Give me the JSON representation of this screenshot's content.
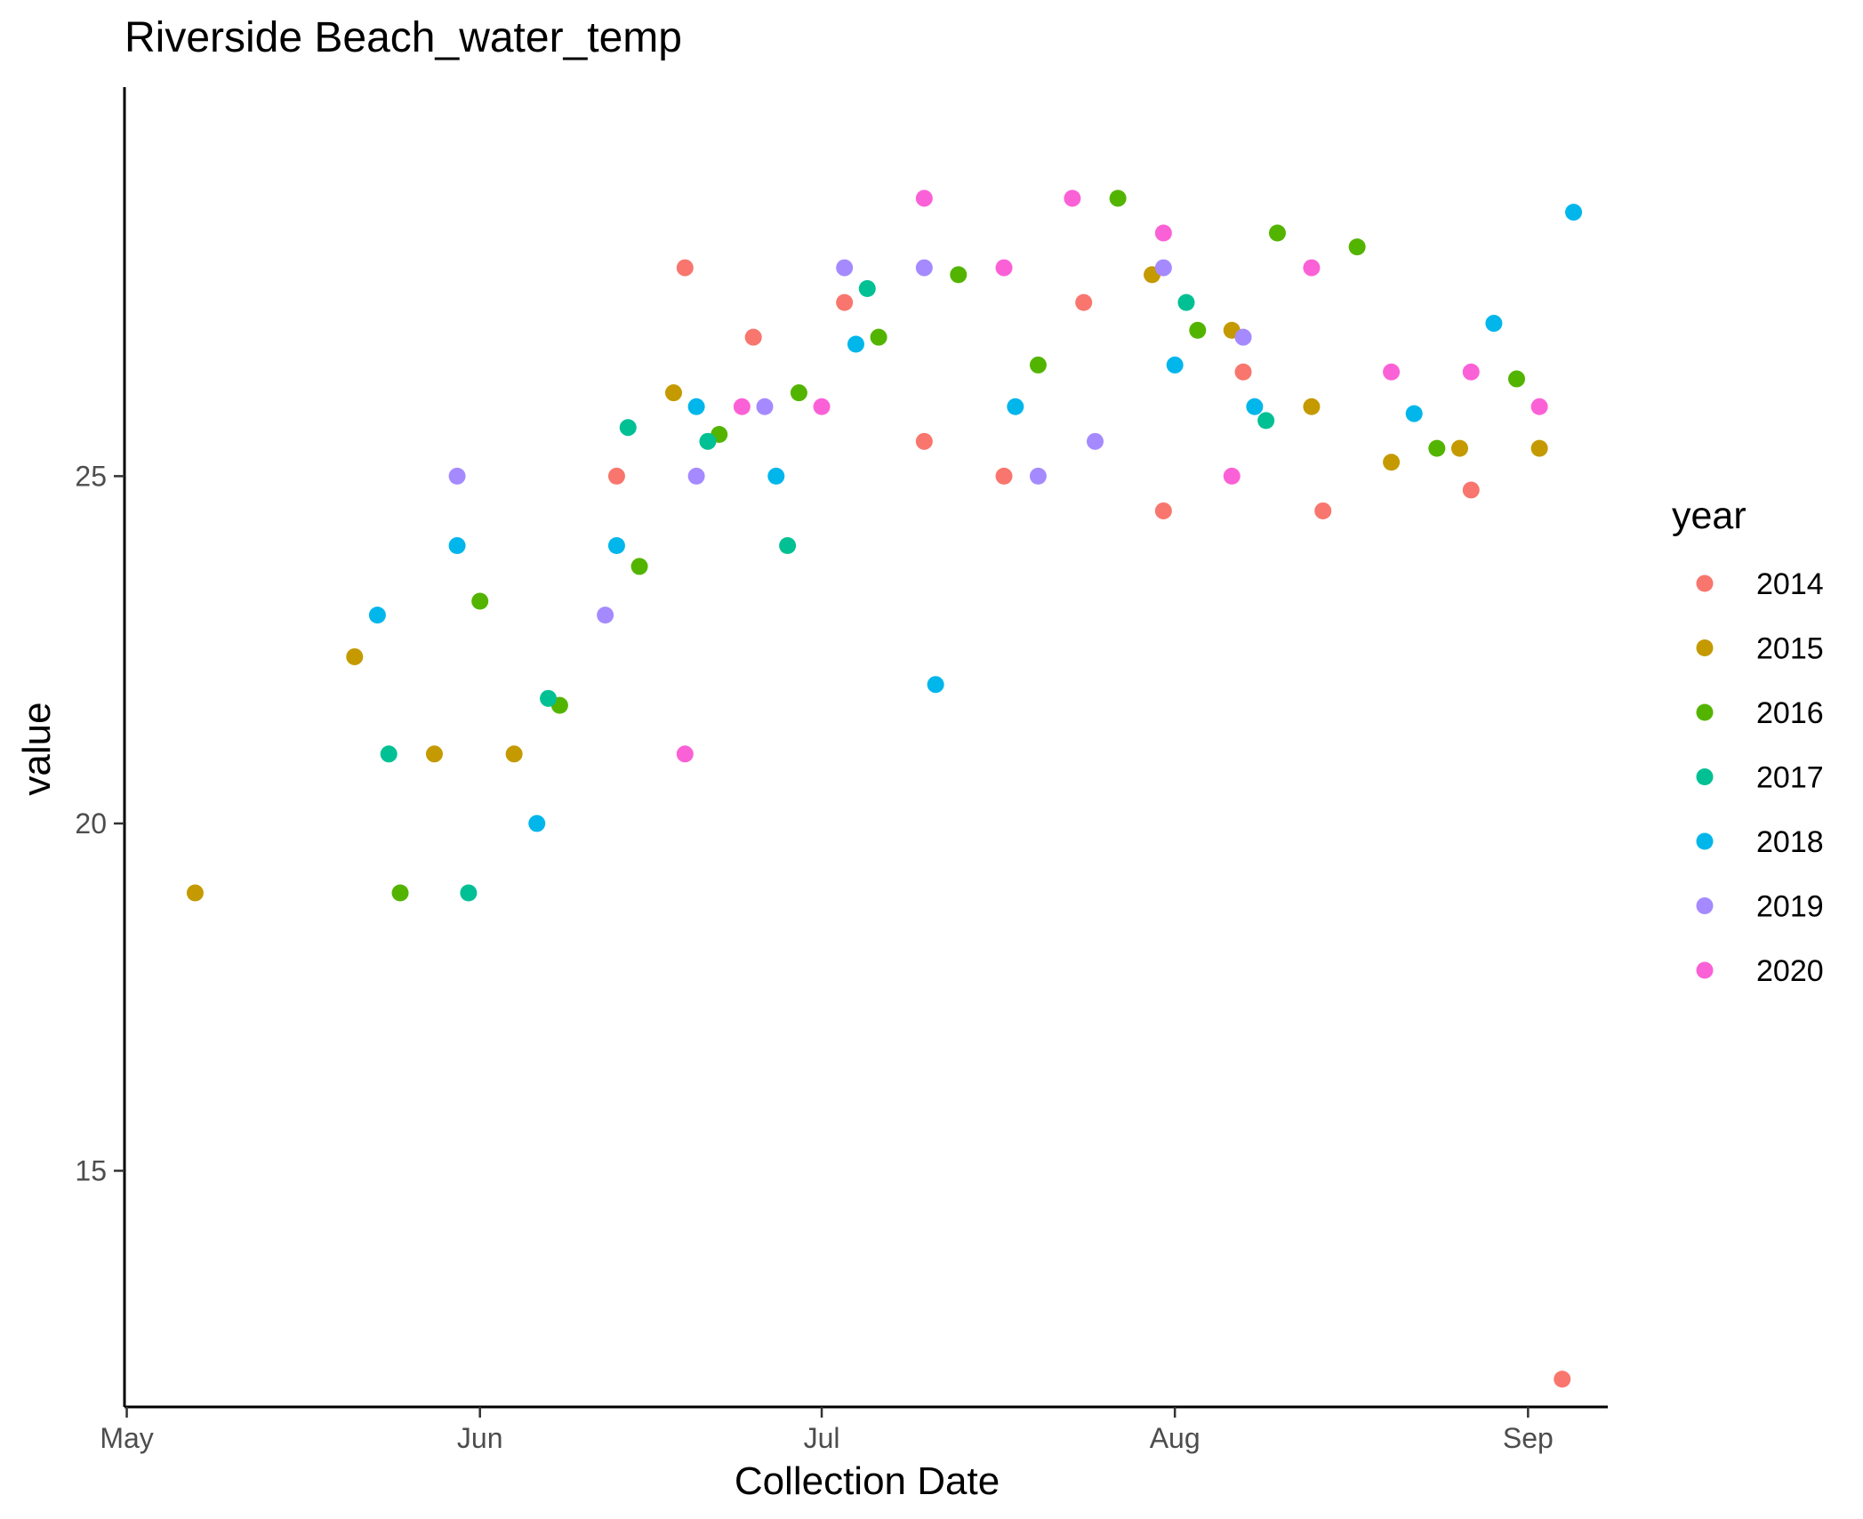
{
  "chart_data": {
    "type": "scatter",
    "title": "Riverside Beach_water_temp",
    "xlabel": "Collection Date",
    "ylabel": "value",
    "x_type": "date",
    "xlim": [
      "05-01",
      "09-08"
    ],
    "ylim": [
      11.6,
      30.6
    ],
    "x_ticks": [
      {
        "date": "05-01",
        "label": "May"
      },
      {
        "date": "06-01",
        "label": "Jun"
      },
      {
        "date": "07-01",
        "label": "Jul"
      },
      {
        "date": "08-01",
        "label": "Aug"
      },
      {
        "date": "09-01",
        "label": "Sep"
      }
    ],
    "y_ticks": [
      15,
      20,
      25
    ],
    "grid": false,
    "legend": {
      "title": "year",
      "position": "right"
    },
    "series": [
      {
        "name": "2014",
        "color": "#F8766D",
        "points": [
          {
            "x": "06-13",
            "y": 25.0
          },
          {
            "x": "06-19",
            "y": 28.0
          },
          {
            "x": "06-25",
            "y": 27.0
          },
          {
            "x": "07-03",
            "y": 27.5
          },
          {
            "x": "07-10",
            "y": 25.5
          },
          {
            "x": "07-17",
            "y": 25.0
          },
          {
            "x": "07-24",
            "y": 27.5
          },
          {
            "x": "07-31",
            "y": 24.5
          },
          {
            "x": "08-07",
            "y": 26.5
          },
          {
            "x": "08-14",
            "y": 24.5
          },
          {
            "x": "08-27",
            "y": 24.8
          },
          {
            "x": "09-04",
            "y": 12.0
          }
        ]
      },
      {
        "name": "2015",
        "color": "#C49A00",
        "points": [
          {
            "x": "05-07",
            "y": 19.0
          },
          {
            "x": "05-21",
            "y": 22.4
          },
          {
            "x": "05-28",
            "y": 21.0
          },
          {
            "x": "06-04",
            "y": 21.0
          },
          {
            "x": "06-18",
            "y": 26.2
          },
          {
            "x": "07-30",
            "y": 27.9
          },
          {
            "x": "08-06",
            "y": 27.1
          },
          {
            "x": "08-13",
            "y": 26.0
          },
          {
            "x": "08-20",
            "y": 25.2
          },
          {
            "x": "08-26",
            "y": 25.4
          },
          {
            "x": "09-02",
            "y": 25.4
          }
        ]
      },
      {
        "name": "2016",
        "color": "#53B400",
        "points": [
          {
            "x": "05-25",
            "y": 19.0
          },
          {
            "x": "06-01",
            "y": 23.2
          },
          {
            "x": "06-08",
            "y": 21.7
          },
          {
            "x": "06-15",
            "y": 23.7
          },
          {
            "x": "06-22",
            "y": 25.6
          },
          {
            "x": "06-29",
            "y": 26.2
          },
          {
            "x": "07-06",
            "y": 27.0
          },
          {
            "x": "07-13",
            "y": 27.9
          },
          {
            "x": "07-20",
            "y": 26.6
          },
          {
            "x": "07-27",
            "y": 29.0
          },
          {
            "x": "08-03",
            "y": 27.1
          },
          {
            "x": "08-10",
            "y": 28.5
          },
          {
            "x": "08-17",
            "y": 28.3
          },
          {
            "x": "08-24",
            "y": 25.4
          },
          {
            "x": "08-31",
            "y": 26.4
          }
        ]
      },
      {
        "name": "2017",
        "color": "#00C094",
        "points": [
          {
            "x": "05-24",
            "y": 21.0
          },
          {
            "x": "05-31",
            "y": 19.0
          },
          {
            "x": "06-07",
            "y": 21.8
          },
          {
            "x": "06-14",
            "y": 25.7
          },
          {
            "x": "06-21",
            "y": 25.5
          },
          {
            "x": "06-28",
            "y": 24.0
          },
          {
            "x": "07-05",
            "y": 27.7
          },
          {
            "x": "08-02",
            "y": 27.5
          },
          {
            "x": "08-09",
            "y": 25.8
          }
        ]
      },
      {
        "name": "2018",
        "color": "#00B6EB",
        "points": [
          {
            "x": "05-23",
            "y": 23.0
          },
          {
            "x": "05-30",
            "y": 24.0
          },
          {
            "x": "06-06",
            "y": 20.0
          },
          {
            "x": "06-13",
            "y": 24.0
          },
          {
            "x": "06-20",
            "y": 26.0
          },
          {
            "x": "06-27",
            "y": 25.0
          },
          {
            "x": "07-04",
            "y": 26.9
          },
          {
            "x": "07-11",
            "y": 22.0
          },
          {
            "x": "07-18",
            "y": 26.0
          },
          {
            "x": "08-01",
            "y": 26.6
          },
          {
            "x": "08-08",
            "y": 26.0
          },
          {
            "x": "08-22",
            "y": 25.9
          },
          {
            "x": "08-29",
            "y": 27.2
          },
          {
            "x": "09-05",
            "y": 28.8
          }
        ]
      },
      {
        "name": "2019",
        "color": "#A58AFF",
        "points": [
          {
            "x": "05-30",
            "y": 25.0
          },
          {
            "x": "06-12",
            "y": 23.0
          },
          {
            "x": "06-20",
            "y": 25.0
          },
          {
            "x": "06-26",
            "y": 26.0
          },
          {
            "x": "07-03",
            "y": 28.0
          },
          {
            "x": "07-10",
            "y": 28.0
          },
          {
            "x": "07-20",
            "y": 25.0
          },
          {
            "x": "07-25",
            "y": 25.5
          },
          {
            "x": "07-31",
            "y": 28.0
          },
          {
            "x": "08-07",
            "y": 27.0
          }
        ]
      },
      {
        "name": "2020",
        "color": "#FB61D7",
        "points": [
          {
            "x": "06-19",
            "y": 21.0
          },
          {
            "x": "06-24",
            "y": 26.0
          },
          {
            "x": "07-01",
            "y": 26.0
          },
          {
            "x": "07-10",
            "y": 29.0
          },
          {
            "x": "07-17",
            "y": 28.0
          },
          {
            "x": "07-23",
            "y": 29.0
          },
          {
            "x": "07-31",
            "y": 28.5
          },
          {
            "x": "08-06",
            "y": 25.0
          },
          {
            "x": "08-13",
            "y": 28.0
          },
          {
            "x": "08-20",
            "y": 26.5
          },
          {
            "x": "08-27",
            "y": 26.5
          },
          {
            "x": "09-02",
            "y": 26.0
          }
        ]
      }
    ]
  }
}
